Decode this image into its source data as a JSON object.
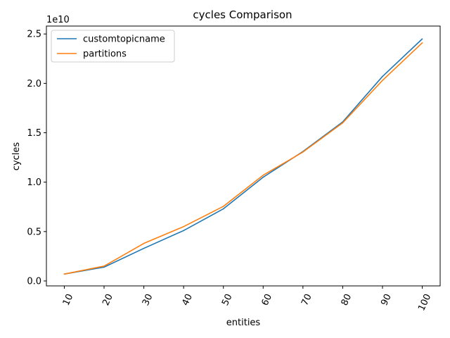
{
  "chart_data": {
    "type": "line",
    "title": "cycles Comparison",
    "xlabel": "entities",
    "ylabel": "cycles",
    "y_offset_text": "1e10",
    "y_scale_exponent": 10,
    "x": [
      10,
      20,
      30,
      40,
      50,
      60,
      70,
      80,
      90,
      100
    ],
    "x_tick_labels": [
      "10",
      "20",
      "30",
      "40",
      "50",
      "60",
      "70",
      "80",
      "90",
      "100"
    ],
    "x_tick_rotation": 65,
    "yticks": [
      0.0,
      0.5,
      1.0,
      1.5,
      2.0,
      2.5
    ],
    "y_tick_labels": [
      "0.0",
      "0.5",
      "1.0",
      "1.5",
      "2.0",
      "2.5"
    ],
    "ylim": [
      -0.05,
      2.58
    ],
    "series": [
      {
        "name": "customtopicname",
        "color": "#1f77b4",
        "values": [
          0.07,
          0.14,
          0.33,
          0.51,
          0.73,
          1.05,
          1.31,
          1.61,
          2.07,
          2.45
        ]
      },
      {
        "name": "partitions",
        "color": "#ff7f0e",
        "values": [
          0.07,
          0.15,
          0.38,
          0.55,
          0.755,
          1.07,
          1.305,
          1.6,
          2.03,
          2.41
        ]
      }
    ],
    "grid": false,
    "legend": "top-left"
  }
}
